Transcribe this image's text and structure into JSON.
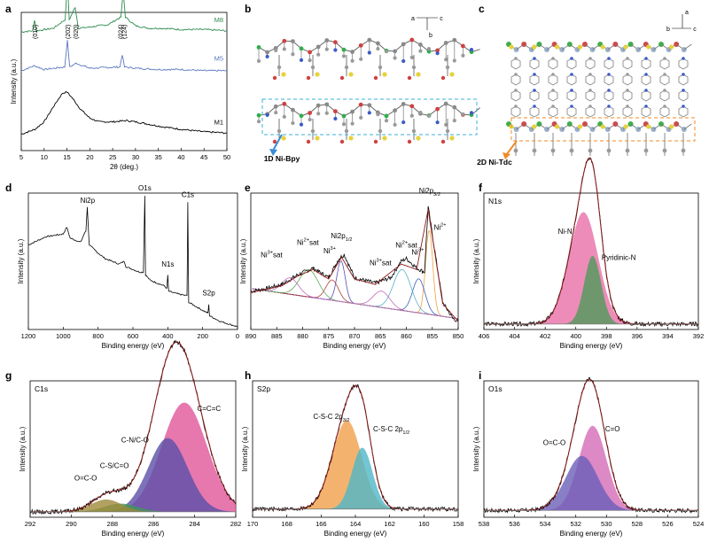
{
  "figure": {
    "panels": [
      {
        "id": "a",
        "kind": "chart"
      },
      {
        "id": "b",
        "kind": "structure",
        "caption": "1D Ni-Bpy",
        "axes": [
          "a",
          "c",
          "b"
        ]
      },
      {
        "id": "c",
        "kind": "structure",
        "caption": "2D Ni-Tdc",
        "axes": [
          "a",
          "b",
          "c"
        ]
      },
      {
        "id": "d",
        "kind": "chart"
      },
      {
        "id": "e",
        "kind": "chart"
      },
      {
        "id": "f",
        "kind": "chart"
      },
      {
        "id": "g",
        "kind": "chart"
      },
      {
        "id": "h",
        "kind": "chart"
      },
      {
        "id": "i",
        "kind": "chart"
      }
    ]
  },
  "chart_data": [
    {
      "panel": "a",
      "type": "line",
      "xlabel": "2θ (deg.)",
      "ylabel": "Intensity (a.u.)",
      "xlim": [
        5,
        50
      ],
      "xticks": [
        5,
        10,
        15,
        20,
        25,
        30,
        35,
        40,
        45,
        50
      ],
      "x_reversed": false,
      "series": [
        {
          "name": "M8",
          "color": "#2e8b4f",
          "offset": 0.84,
          "points": [
            [
              5,
              0.02
            ],
            [
              7.5,
              0.03
            ],
            [
              7.9,
              0.12
            ],
            [
              8.3,
              0.03
            ],
            [
              12,
              0.05
            ],
            [
              14.6,
              0.12
            ],
            [
              15.1,
              0.42
            ],
            [
              15.5,
              0.12
            ],
            [
              16.8,
              0.22
            ],
            [
              17.5,
              0.05
            ],
            [
              20,
              0.06
            ],
            [
              22,
              0.07
            ],
            [
              24,
              0.08
            ],
            [
              26.8,
              0.14
            ],
            [
              27.3,
              0.34
            ],
            [
              27.8,
              0.14
            ],
            [
              30,
              0.07
            ],
            [
              33,
              0.05
            ],
            [
              36,
              0.05
            ],
            [
              40,
              0.04
            ],
            [
              45,
              0.04
            ],
            [
              50,
              0.03
            ]
          ]
        },
        {
          "name": "M5",
          "color": "#5a78c0",
          "offset": 0.56,
          "points": [
            [
              5,
              0.02
            ],
            [
              7.9,
              0.06
            ],
            [
              10,
              0.03
            ],
            [
              14.5,
              0.05
            ],
            [
              15.1,
              0.26
            ],
            [
              15.6,
              0.05
            ],
            [
              17,
              0.08
            ],
            [
              20,
              0.04
            ],
            [
              26.6,
              0.05
            ],
            [
              27.1,
              0.15
            ],
            [
              27.6,
              0.05
            ],
            [
              30,
              0.04
            ],
            [
              35,
              0.03
            ],
            [
              40,
              0.03
            ],
            [
              45,
              0.02
            ],
            [
              50,
              0.02
            ]
          ]
        },
        {
          "name": "M1",
          "color": "#000000",
          "offset": 0.1,
          "points": [
            [
              5,
              0.02
            ],
            [
              8,
              0.06
            ],
            [
              10,
              0.12
            ],
            [
              12,
              0.24
            ],
            [
              14,
              0.35
            ],
            [
              15,
              0.36
            ],
            [
              16,
              0.32
            ],
            [
              18,
              0.22
            ],
            [
              20,
              0.15
            ],
            [
              22,
              0.12
            ],
            [
              25,
              0.12
            ],
            [
              28,
              0.13
            ],
            [
              30,
              0.12
            ],
            [
              33,
              0.1
            ],
            [
              36,
              0.08
            ],
            [
              40,
              0.06
            ],
            [
              45,
              0.04
            ],
            [
              50,
              0.03
            ]
          ]
        }
      ],
      "annotations": [
        {
          "text": "(010)",
          "x": 7.9
        },
        {
          "text": "(202)",
          "x": 15.1
        },
        {
          "text": "(020)",
          "x": 16.8
        },
        {
          "text": "(024)",
          "x": 26.6
        },
        {
          "text": "(124)",
          "x": 27.4
        }
      ]
    },
    {
      "panel": "d",
      "type": "line",
      "xlabel": "Binding energy (eV)",
      "ylabel": "Intensity (a.u.)",
      "xlim": [
        1200,
        0
      ],
      "xticks": [
        1200,
        1000,
        800,
        600,
        400,
        200,
        0
      ],
      "x_reversed": true,
      "series": [
        {
          "name": "",
          "color": "#000000",
          "offset": 0,
          "points": [
            [
              1200,
              0.62
            ],
            [
              1100,
              0.68
            ],
            [
              1000,
              0.7
            ],
            [
              980,
              0.75
            ],
            [
              960,
              0.67
            ],
            [
              900,
              0.64
            ],
            [
              880,
              0.7
            ],
            [
              870,
              0.72
            ],
            [
              862,
              0.9
            ],
            [
              856,
              0.74
            ],
            [
              850,
              0.62
            ],
            [
              800,
              0.56
            ],
            [
              760,
              0.52
            ],
            [
              720,
              0.5
            ],
            [
              680,
              0.48
            ],
            [
              650,
              0.5
            ],
            [
              640,
              0.46
            ],
            [
              600,
              0.44
            ],
            [
              560,
              0.42
            ],
            [
              540,
              0.42
            ],
            [
              532,
              0.98
            ],
            [
              528,
              0.4
            ],
            [
              500,
              0.36
            ],
            [
              460,
              0.34
            ],
            [
              420,
              0.32
            ],
            [
              405,
              0.3
            ],
            [
              400,
              0.4
            ],
            [
              395,
              0.28
            ],
            [
              340,
              0.26
            ],
            [
              300,
              0.25
            ],
            [
              290,
              0.25
            ],
            [
              285,
              0.93
            ],
            [
              280,
              0.2
            ],
            [
              240,
              0.17
            ],
            [
              200,
              0.14
            ],
            [
              170,
              0.12
            ],
            [
              165,
              0.18
            ],
            [
              160,
              0.1
            ],
            [
              100,
              0.06
            ],
            [
              50,
              0.04
            ],
            [
              0,
              0.02
            ]
          ]
        }
      ],
      "annotations": [
        {
          "text": "Ni2p",
          "x": 860,
          "y": 0.93
        },
        {
          "text": "O1s",
          "x": 532,
          "y": 1.02
        },
        {
          "text": "C1s",
          "x": 285,
          "y": 0.97
        },
        {
          "text": "N1s",
          "x": 400,
          "y": 0.46
        },
        {
          "text": "S2p",
          "x": 165,
          "y": 0.25
        }
      ]
    },
    {
      "panel": "e",
      "type": "line",
      "xlabel": "Binding energy (eV)",
      "ylabel": "Intensity (a.u.)",
      "xlim": [
        890,
        850
      ],
      "xticks": [
        890,
        885,
        880,
        875,
        870,
        865,
        860,
        855,
        850
      ],
      "x_reversed": true,
      "series": [
        {
          "name": "",
          "color": "#000000",
          "offset": 0,
          "points": [
            [
              890,
              0.28
            ],
            [
              887,
              0.3
            ],
            [
              884,
              0.33
            ],
            [
              881,
              0.4
            ],
            [
              878,
              0.45
            ],
            [
              875,
              0.38
            ],
            [
              873,
              0.52
            ],
            [
              872,
              0.55
            ],
            [
              870,
              0.38
            ],
            [
              866,
              0.34
            ],
            [
              863,
              0.38
            ],
            [
              861,
              0.5
            ],
            [
              860,
              0.52
            ],
            [
              858,
              0.45
            ],
            [
              856.5,
              0.42
            ],
            [
              855.8,
              0.9
            ],
            [
              855,
              0.7
            ],
            [
              853,
              0.2
            ],
            [
              851,
              0.08
            ],
            [
              850,
              0.06
            ]
          ]
        },
        {
          "name": "fit",
          "color": "#8b1a1a",
          "offset": 0,
          "points": [
            [
              890,
              0.27
            ],
            [
              884,
              0.32
            ],
            [
              881,
              0.39
            ],
            [
              878,
              0.44
            ],
            [
              875,
              0.37
            ],
            [
              872.5,
              0.53
            ],
            [
              870,
              0.37
            ],
            [
              866,
              0.33
            ],
            [
              861,
              0.48
            ],
            [
              858,
              0.44
            ],
            [
              855.8,
              0.88
            ],
            [
              853,
              0.19
            ],
            [
              850,
              0.06
            ]
          ]
        }
      ],
      "annotations": [
        {
          "text": "Ni2p",
          "sub": "3/2",
          "x": 855.5,
          "y": 1.0
        },
        {
          "text": "Ni",
          "sup": "2+",
          "x": 853.5,
          "y": 0.73
        },
        {
          "text": "Ni",
          "sup": "2+",
          "suffix": "sat",
          "x": 860,
          "y": 0.6
        },
        {
          "text": "Ni",
          "sup": "3+",
          "x": 857.8,
          "y": 0.55
        },
        {
          "text": "Ni",
          "sup": "3+",
          "suffix": "sat",
          "x": 865,
          "y": 0.47
        },
        {
          "text": "Ni2p",
          "sub": "1/2",
          "x": 872.5,
          "y": 0.67
        },
        {
          "text": "Ni",
          "sup": "3+",
          "x": 874.8,
          "y": 0.56
        },
        {
          "text": "Ni",
          "sup": "2+",
          "suffix": "sat",
          "x": 879,
          "y": 0.62
        },
        {
          "text": "Ni",
          "sup": "3+",
          "suffix": "sat",
          "x": 886,
          "y": 0.53
        }
      ]
    },
    {
      "panel": "f",
      "type": "area",
      "title": "N1s",
      "xlabel": "Binding energy (eV)",
      "ylabel": "Intensity (a.u.)",
      "xlim": [
        406,
        392
      ],
      "xticks": [
        406,
        404,
        402,
        400,
        398,
        396,
        394,
        392
      ],
      "x_reversed": true,
      "series": [
        {
          "name": "Ni-N",
          "color": "#e86fa8",
          "center": 399.5,
          "height": 0.82,
          "width": 0.95
        },
        {
          "name": "Pyridinic-N",
          "color": "#4f9a5a",
          "center": 398.9,
          "height": 0.5,
          "width": 0.55
        }
      ],
      "baseline": 0.04,
      "labels": [
        {
          "text": "Ni-N",
          "x": 400.7,
          "y": 0.7
        },
        {
          "text": "Pyridinic-N",
          "x": 397.2,
          "y": 0.51
        }
      ]
    },
    {
      "panel": "g",
      "type": "area",
      "title": "C1s",
      "xlabel": "Binding energy (eV)",
      "ylabel": "Intensity (a.u.)",
      "xlim": [
        292,
        282
      ],
      "xticks": [
        292,
        290,
        288,
        286,
        284,
        282
      ],
      "x_reversed": true,
      "series": [
        {
          "name": "C=C=C",
          "color": "#e0569a",
          "center": 284.5,
          "height": 0.8,
          "width": 1.1
        },
        {
          "name": "C-N/C-O",
          "color": "#5a4fa8",
          "center": 285.3,
          "height": 0.54,
          "width": 0.95
        },
        {
          "name": "C-S/C=O",
          "color": "#3f9a5a",
          "center": 287.6,
          "height": 0.06,
          "width": 0.8
        },
        {
          "name": "O=C-O",
          "color": "#a08a3a",
          "center": 288.3,
          "height": 0.09,
          "width": 0.75
        }
      ],
      "baseline": 0.04,
      "labels": [
        {
          "text": "C=C=C",
          "x": 283.3,
          "y": 0.78
        },
        {
          "text": "C-N/C-O",
          "x": 286.9,
          "y": 0.55
        },
        {
          "text": "C-S/C=O",
          "x": 287.9,
          "y": 0.36
        },
        {
          "text": "O=C-O",
          "x": 289.3,
          "y": 0.27
        }
      ]
    },
    {
      "panel": "h",
      "type": "area",
      "title": "S2p",
      "xlabel": "Binding energy (eV)",
      "ylabel": "Intensity (a.u.)",
      "xlim": [
        170,
        158
      ],
      "xticks": [
        170,
        168,
        166,
        164,
        162,
        160,
        158
      ],
      "x_reversed": true,
      "series": [
        {
          "name": "C-S-C 2p3/2",
          "color": "#f0a04a",
          "center": 164.5,
          "height": 0.65,
          "width": 0.85
        },
        {
          "name": "C-S-C 2p1/2",
          "color": "#4fb6c8",
          "center": 163.6,
          "height": 0.45,
          "width": 0.6
        }
      ],
      "baseline": 0.06,
      "labels": [
        {
          "text": "C-S-C 2p",
          "sub": "3/2",
          "x": 165.4,
          "y": 0.72
        },
        {
          "text": "C-S-C 2p",
          "sub": "1/2",
          "x": 161.9,
          "y": 0.63
        }
      ]
    },
    {
      "panel": "i",
      "type": "area",
      "title": "O1s",
      "xlabel": "Binding energy (eV)",
      "ylabel": "Intensity (a.u.)",
      "xlim": [
        538,
        524
      ],
      "xticks": [
        538,
        536,
        534,
        532,
        530,
        528,
        526,
        524
      ],
      "x_reversed": true,
      "series": [
        {
          "name": "C=O",
          "color": "#d46bb8",
          "center": 530.9,
          "height": 0.62,
          "width": 0.9
        },
        {
          "name": "O=C-O",
          "color": "#6a5fb8",
          "center": 531.6,
          "height": 0.4,
          "width": 1.05
        }
      ],
      "baseline": 0.05,
      "labels": [
        {
          "text": "C=O",
          "x": 529.6,
          "y": 0.63
        },
        {
          "text": "O=C-O",
          "x": 533.4,
          "y": 0.53
        }
      ]
    }
  ],
  "colors": {
    "axis": "#000000",
    "fit": "#8b1a1a",
    "baseline": "#7a7a7a",
    "bpy_box": "#3ab0d8",
    "tdc_box": "#f08a24"
  }
}
